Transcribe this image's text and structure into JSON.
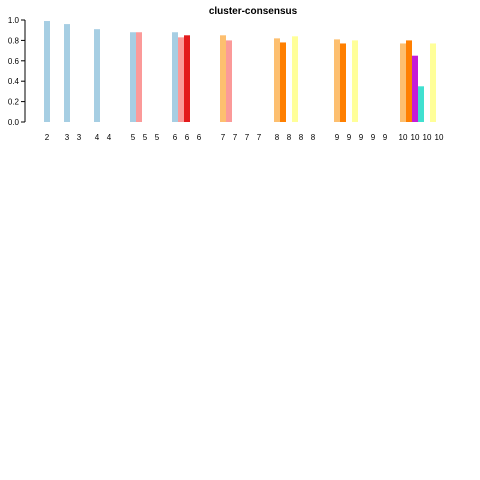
{
  "chart_data": {
    "type": "bar",
    "title": "cluster-consensus",
    "xlabel": "",
    "ylabel": "",
    "ylim": [
      0,
      1
    ],
    "yticks": [
      {
        "value": 0,
        "label": "0.0"
      },
      {
        "value": 0.2,
        "label": "0.2"
      },
      {
        "value": 0.4,
        "label": "0.4"
      },
      {
        "value": 0.6,
        "label": "0.6"
      },
      {
        "value": 0.8,
        "label": "0.8"
      },
      {
        "value": 1,
        "label": "1.0"
      }
    ],
    "grid": false,
    "legend": "none",
    "groups": [
      {
        "k": "2",
        "labels": [
          "2"
        ],
        "bars": [
          {
            "cluster": 1,
            "value": 0.99,
            "color": "#a6cee3"
          }
        ]
      },
      {
        "k": "3",
        "labels": [
          "3",
          "3"
        ],
        "bars": [
          {
            "cluster": 1,
            "value": 0.96,
            "color": "#a6cee3"
          }
        ]
      },
      {
        "k": "4",
        "labels": [
          "4",
          "4"
        ],
        "bars": [
          {
            "cluster": 1,
            "value": 0.91,
            "color": "#a6cee3"
          }
        ]
      },
      {
        "k": "5",
        "labels": [
          "5",
          "5",
          "5"
        ],
        "bars": [
          {
            "cluster": 1,
            "value": 0.88,
            "color": "#a6cee3"
          },
          {
            "cluster": 2,
            "value": 0.88,
            "color": "#fb9a99"
          }
        ]
      },
      {
        "k": "6",
        "labels": [
          "6",
          "6",
          "6"
        ],
        "bars": [
          {
            "cluster": 1,
            "value": 0.88,
            "color": "#a6cee3"
          },
          {
            "cluster": 2,
            "value": 0.83,
            "color": "#fb9a99"
          },
          {
            "cluster": 3,
            "value": 0.85,
            "color": "#e31a1c"
          }
        ]
      },
      {
        "k": "7",
        "labels": [
          "7",
          "7",
          "7",
          "7"
        ],
        "bars": [
          {
            "cluster": 1,
            "value": 0.85,
            "color": "#fdbf6f"
          },
          {
            "cluster": 2,
            "value": 0.8,
            "color": "#fb9a99"
          }
        ]
      },
      {
        "k": "8",
        "labels": [
          "8",
          "8",
          "8",
          "8"
        ],
        "bars": [
          {
            "cluster": 1,
            "value": 0.82,
            "color": "#fdbf6f"
          },
          {
            "cluster": 2,
            "value": 0.78,
            "color": "#ff7f00"
          },
          {
            "cluster": 4,
            "value": 0.84,
            "color": "#ffff99"
          }
        ]
      },
      {
        "k": "9",
        "labels": [
          "9",
          "9",
          "9",
          "9",
          "9"
        ],
        "bars": [
          {
            "cluster": 1,
            "value": 0.81,
            "color": "#fdbf6f"
          },
          {
            "cluster": 2,
            "value": 0.77,
            "color": "#ff7f00"
          },
          {
            "cluster": 4,
            "value": 0.8,
            "color": "#ffff99"
          }
        ]
      },
      {
        "k": "10",
        "labels": [
          "10",
          "10",
          "10",
          "10"
        ],
        "bars": [
          {
            "cluster": 1,
            "value": 0.77,
            "color": "#fdbf6f"
          },
          {
            "cluster": 2,
            "value": 0.8,
            "color": "#ff7f00"
          },
          {
            "cluster": 3,
            "value": 0.65,
            "color": "#c51bd6"
          },
          {
            "cluster": 4,
            "value": 0.35,
            "color": "#40e0d0"
          },
          {
            "cluster": 6,
            "value": 0.77,
            "color": "#ffff99"
          }
        ]
      }
    ]
  }
}
